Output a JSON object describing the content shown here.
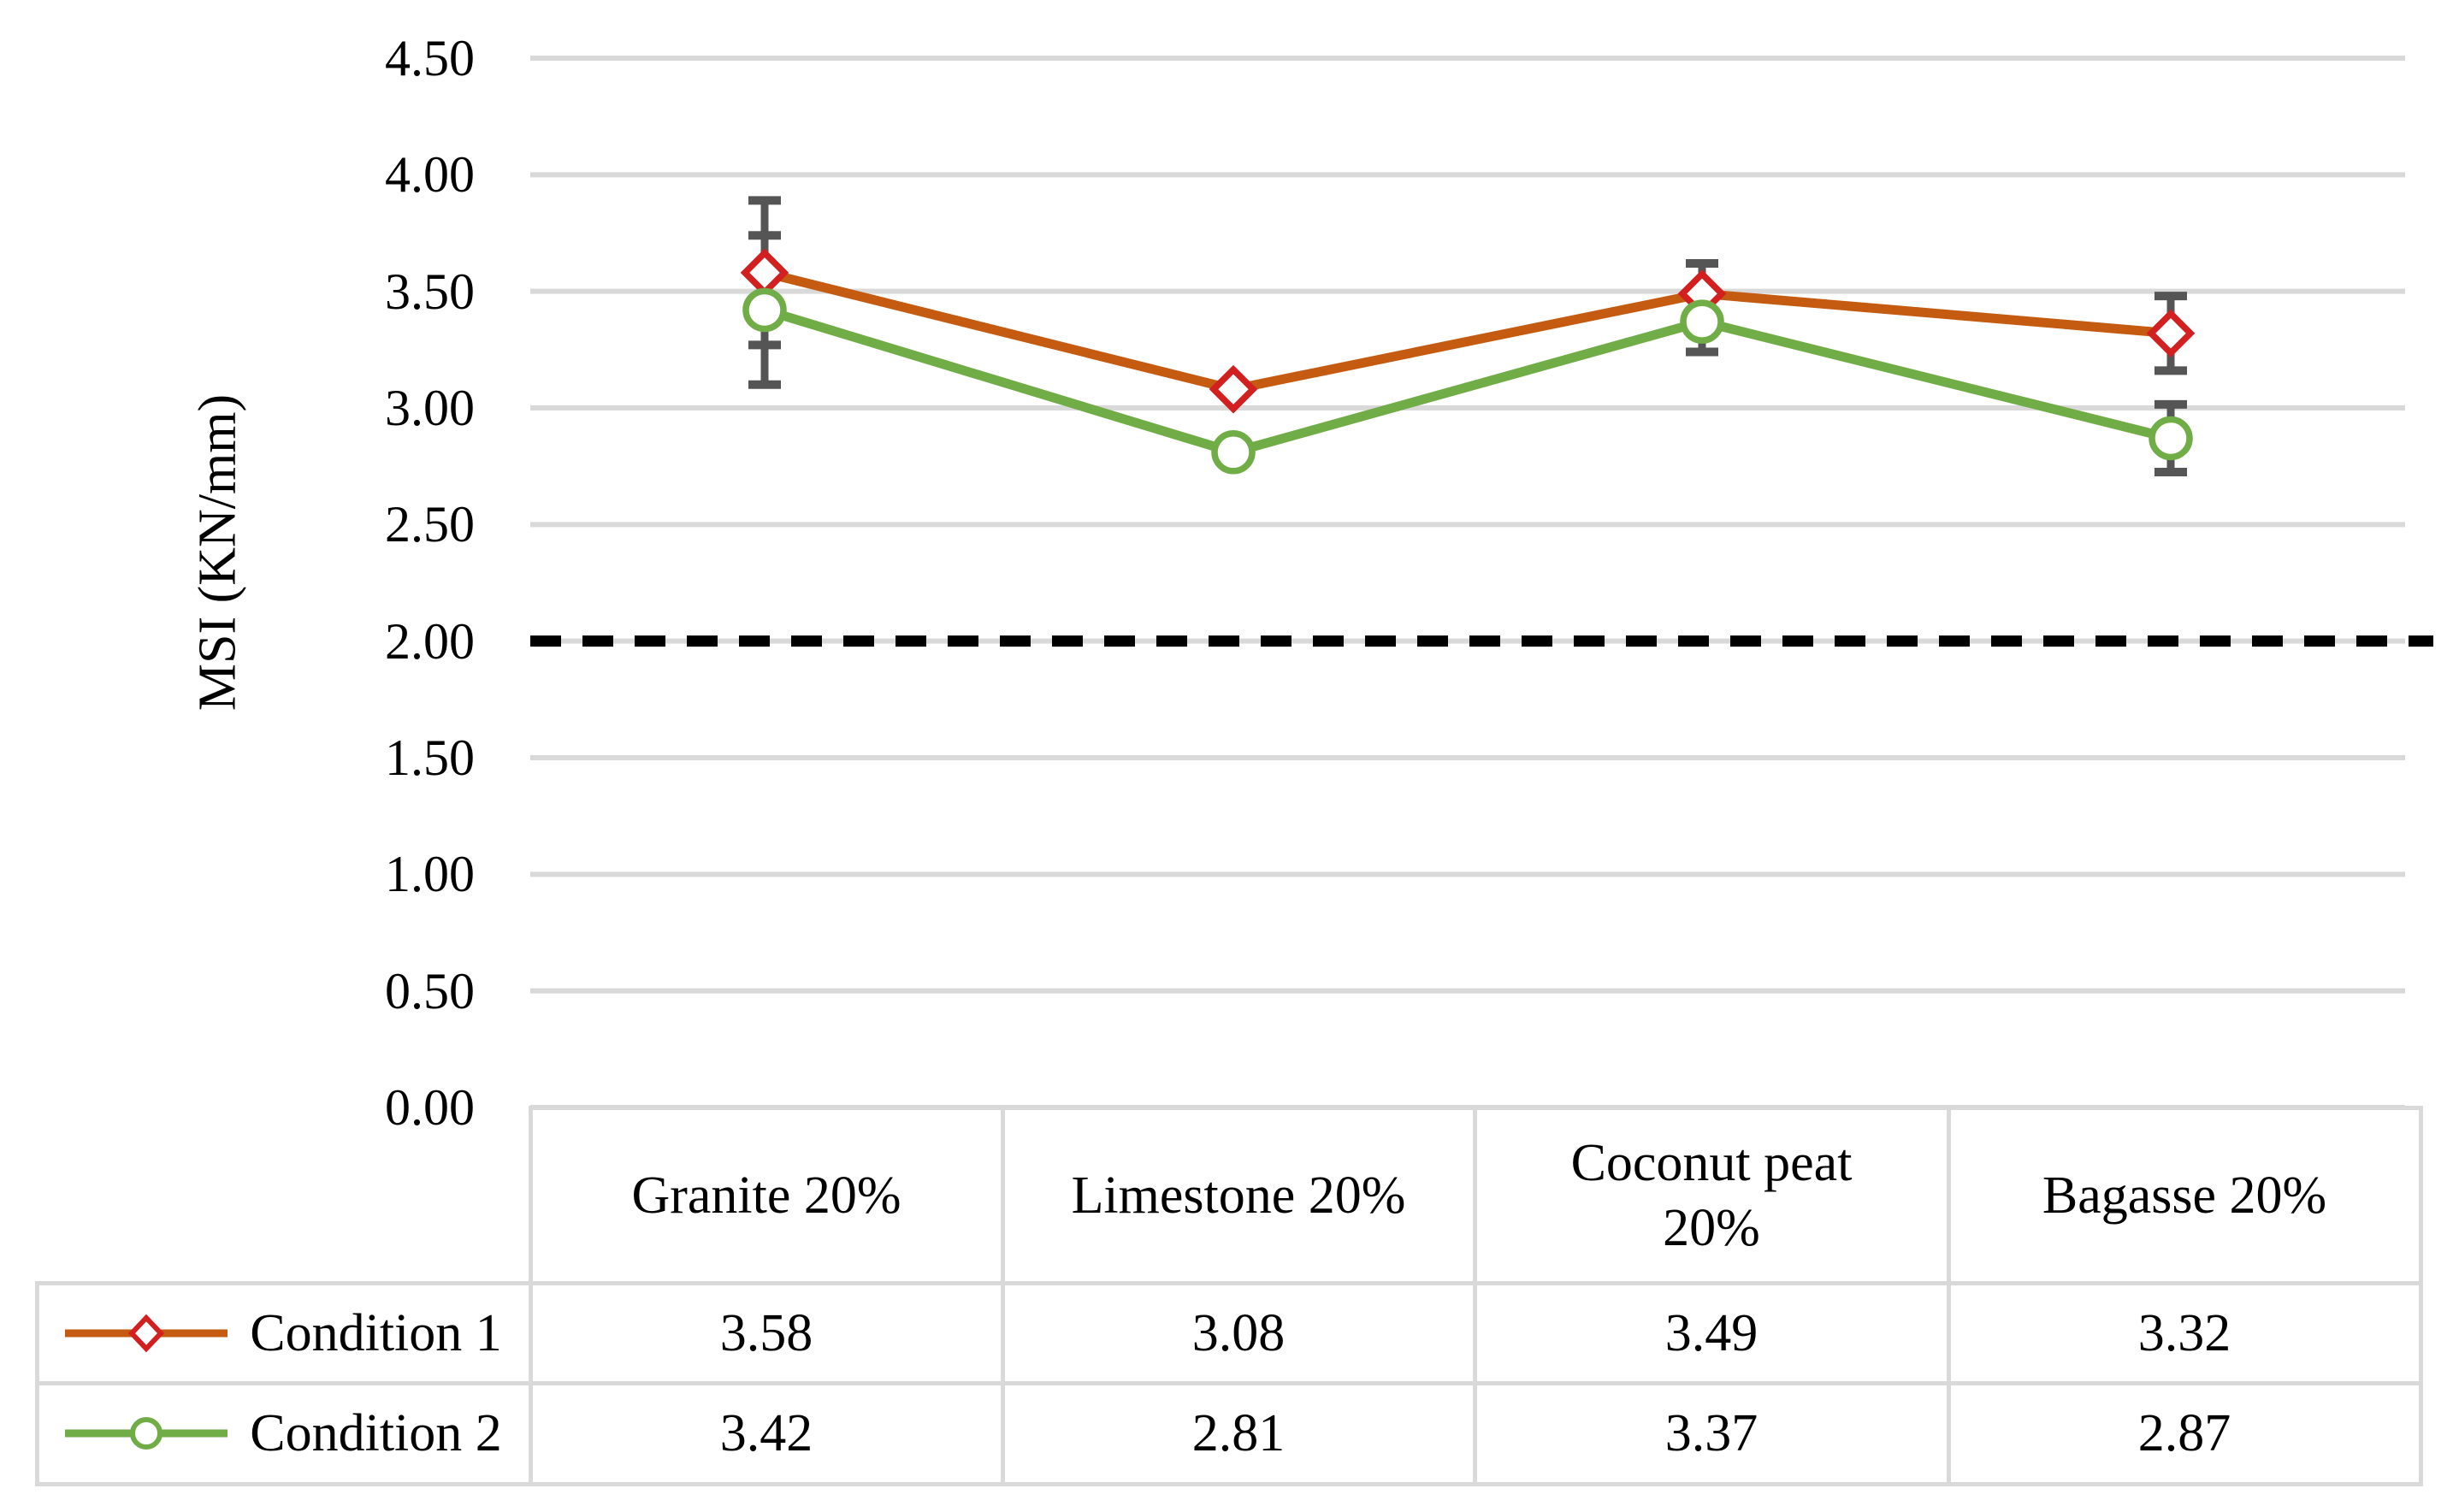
{
  "chart_data": {
    "type": "line",
    "title": "",
    "ylabel": "MSI (KN/mm)",
    "categories": [
      "Granite 20%",
      "Limestone 20%",
      "Coconut peat 20%",
      "Bagasse 20%"
    ],
    "category_display_lines": [
      [
        "Granite 20%"
      ],
      [
        "Limestone 20%"
      ],
      [
        "Coconut peat",
        "20%"
      ],
      [
        "Bagasse 20%"
      ]
    ],
    "series": [
      {
        "name": "Condition 1",
        "values": [
          3.58,
          3.08,
          3.49,
          3.32
        ],
        "error_bars": [
          0.31,
          0,
          0.13,
          0.16
        ],
        "line_color": "#C55A11",
        "marker": "diamond",
        "marker_color": "#D21F1F"
      },
      {
        "name": "Condition 2",
        "values": [
          3.42,
          2.81,
          3.37,
          2.87
        ],
        "error_bars": [
          0.32,
          0,
          0.13,
          0.145
        ],
        "line_color": "#70AD47",
        "marker": "circle",
        "marker_color": "#70AD47"
      }
    ],
    "y_axis": {
      "min": 0,
      "max": 4.5,
      "step": 0.5,
      "tick_labels": [
        "4.50",
        "4.00",
        "3.50",
        "3.00",
        "2.50",
        "2.00",
        "1.50",
        "1.00",
        "0.50",
        "0.00"
      ]
    },
    "reference_line": {
      "value": 2.0,
      "style": "dashed",
      "color": "#000000"
    },
    "grid": {
      "horizontal": true,
      "color": "#D9D9D9"
    },
    "error_bar_color": "#555555",
    "marker_fill": "#FFFFFF",
    "legend_position": "data-table-left",
    "data_table_shown": true,
    "xlabel": "",
    "ylim": [
      0,
      4.5
    ]
  }
}
